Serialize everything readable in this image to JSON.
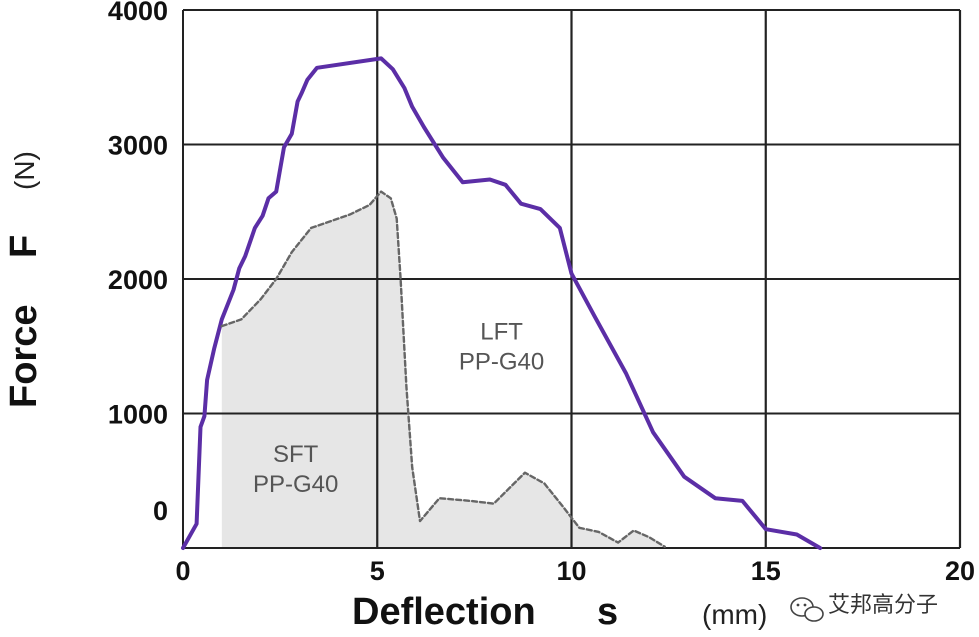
{
  "chart_data": {
    "type": "line",
    "xlabel": "Deflection",
    "xlabel_symbol": "s",
    "xlabel_unit": "(mm)",
    "ylabel": "Force",
    "ylabel_symbol": "F",
    "ylabel_unit": "(N)",
    "xlim": [
      0,
      20
    ],
    "ylim": [
      0,
      4000
    ],
    "x_ticks": [
      0,
      5,
      10,
      15,
      20
    ],
    "x_tick_labels": [
      "0",
      "5",
      "10",
      "15",
      "20"
    ],
    "y_ticks": [
      0,
      1000,
      2000,
      3000,
      4000
    ],
    "y_tick_labels": [
      "0",
      "1000",
      "2000",
      "3000",
      "4000"
    ],
    "grid": true,
    "annotations": [
      {
        "lines": [
          "LFT",
          "PP-G40"
        ],
        "x": 8.2,
        "y": 1550
      },
      {
        "lines": [
          "SFT",
          "PP-G40"
        ],
        "x": 2.9,
        "y": 640
      }
    ],
    "series": [
      {
        "name": "LFT PP-G40",
        "style": "solid",
        "color": "#5b2ea6",
        "points": [
          [
            0,
            0
          ],
          [
            0.35,
            180
          ],
          [
            0.45,
            900
          ],
          [
            0.55,
            980
          ],
          [
            0.62,
            1250
          ],
          [
            0.8,
            1480
          ],
          [
            1.0,
            1700
          ],
          [
            1.3,
            1920
          ],
          [
            1.45,
            2080
          ],
          [
            1.6,
            2170
          ],
          [
            1.85,
            2380
          ],
          [
            2.05,
            2470
          ],
          [
            2.2,
            2600
          ],
          [
            2.4,
            2650
          ],
          [
            2.6,
            2980
          ],
          [
            2.8,
            3080
          ],
          [
            2.95,
            3320
          ],
          [
            3.05,
            3380
          ],
          [
            3.2,
            3480
          ],
          [
            3.45,
            3570
          ],
          [
            5.1,
            3640
          ],
          [
            5.4,
            3560
          ],
          [
            5.7,
            3420
          ],
          [
            5.9,
            3280
          ],
          [
            6.2,
            3130
          ],
          [
            6.7,
            2900
          ],
          [
            7.2,
            2720
          ],
          [
            7.9,
            2740
          ],
          [
            8.3,
            2700
          ],
          [
            8.7,
            2560
          ],
          [
            9.2,
            2520
          ],
          [
            9.7,
            2380
          ],
          [
            10.0,
            2040
          ],
          [
            10.6,
            1720
          ],
          [
            11.4,
            1300
          ],
          [
            12.1,
            860
          ],
          [
            12.9,
            530
          ],
          [
            13.7,
            370
          ],
          [
            14.4,
            350
          ],
          [
            15.0,
            140
          ],
          [
            15.8,
            100
          ],
          [
            16.4,
            0
          ]
        ]
      },
      {
        "name": "SFT PP-G40",
        "style": "dashed",
        "color": "#666666",
        "points": [
          [
            1.0,
            1650
          ],
          [
            1.5,
            1700
          ],
          [
            2.0,
            1850
          ],
          [
            2.4,
            2000
          ],
          [
            2.8,
            2200
          ],
          [
            3.3,
            2380
          ],
          [
            4.3,
            2480
          ],
          [
            4.8,
            2550
          ],
          [
            5.1,
            2650
          ],
          [
            5.35,
            2600
          ],
          [
            5.5,
            2450
          ],
          [
            5.6,
            2000
          ],
          [
            5.75,
            1200
          ],
          [
            5.9,
            600
          ],
          [
            6.1,
            200
          ],
          [
            6.6,
            370
          ],
          [
            7.4,
            350
          ],
          [
            8.0,
            330
          ],
          [
            8.8,
            560
          ],
          [
            9.3,
            480
          ],
          [
            9.8,
            300
          ],
          [
            10.2,
            150
          ],
          [
            10.7,
            120
          ],
          [
            11.2,
            40
          ],
          [
            11.6,
            130
          ],
          [
            12.0,
            80
          ],
          [
            12.4,
            10
          ]
        ]
      }
    ]
  },
  "watermark": {
    "text": "艾邦高分子",
    "icon": "wechat-icon"
  }
}
